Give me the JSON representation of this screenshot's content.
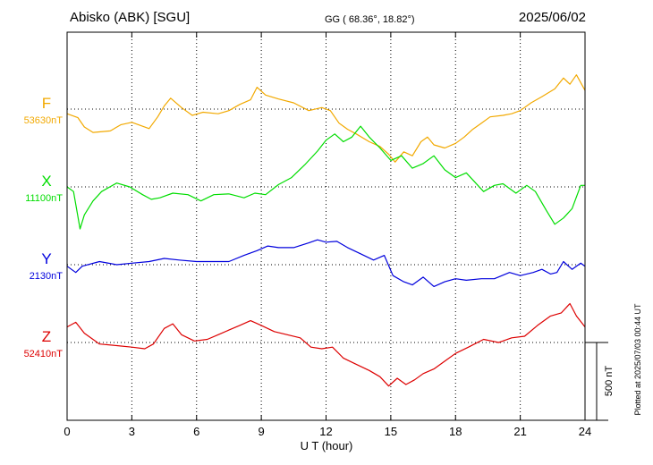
{
  "header": {
    "station": "Abisko (ABK)  [SGU]",
    "coords": "GG ( 68.36°,  18.82°)",
    "date": "2025/06/02"
  },
  "plotted_note": "Plotted at 2025/07/03 00:44 UT",
  "scale_bar_label": "500 nT",
  "chart_data": {
    "type": "line",
    "xlabel": "U T (hour)",
    "xlim": [
      0,
      24
    ],
    "xticks": [
      0,
      3,
      6,
      9,
      12,
      15,
      18,
      21,
      24
    ],
    "tick_labels": [
      "0",
      "3",
      "6",
      "9",
      "12",
      "15",
      "18",
      "21",
      "24"
    ],
    "grid": true,
    "scale_nT": 500,
    "series": [
      {
        "name": "F",
        "baseline_label": "53630nT",
        "baseline": 53630,
        "color": "#f2a900",
        "points": [
          [
            0,
            53600
          ],
          [
            0.5,
            53575
          ],
          [
            0.8,
            53515
          ],
          [
            1.2,
            53480
          ],
          [
            2,
            53490
          ],
          [
            2.5,
            53530
          ],
          [
            3,
            53545
          ],
          [
            3.8,
            53505
          ],
          [
            4.2,
            53580
          ],
          [
            4.5,
            53650
          ],
          [
            4.8,
            53700
          ],
          [
            5.3,
            53640
          ],
          [
            5.8,
            53590
          ],
          [
            6.3,
            53610
          ],
          [
            7,
            53600
          ],
          [
            7.5,
            53620
          ],
          [
            8,
            53660
          ],
          [
            8.5,
            53690
          ],
          [
            8.8,
            53770
          ],
          [
            9.2,
            53720
          ],
          [
            9.8,
            53695
          ],
          [
            10.5,
            53670
          ],
          [
            11.2,
            53620
          ],
          [
            11.8,
            53640
          ],
          [
            12.2,
            53620
          ],
          [
            12.6,
            53540
          ],
          [
            13,
            53500
          ],
          [
            13.4,
            53470
          ],
          [
            14,
            53420
          ],
          [
            14.5,
            53390
          ],
          [
            14.9,
            53340
          ],
          [
            15.2,
            53290
          ],
          [
            15.6,
            53355
          ],
          [
            16,
            53330
          ],
          [
            16.4,
            53420
          ],
          [
            16.7,
            53450
          ],
          [
            17,
            53400
          ],
          [
            17.5,
            53380
          ],
          [
            18,
            53410
          ],
          [
            18.4,
            53450
          ],
          [
            18.8,
            53500
          ],
          [
            19.2,
            53540
          ],
          [
            19.6,
            53580
          ],
          [
            20.2,
            53590
          ],
          [
            20.6,
            53600
          ],
          [
            21,
            53620
          ],
          [
            21.5,
            53670
          ],
          [
            22,
            53710
          ],
          [
            22.6,
            53760
          ],
          [
            23,
            53830
          ],
          [
            23.3,
            53790
          ],
          [
            23.6,
            53850
          ],
          [
            24,
            53750
          ]
        ]
      },
      {
        "name": "X",
        "baseline_label": "11100nT",
        "baseline": 11100,
        "color": "#00dd00",
        "points": [
          [
            0,
            11100
          ],
          [
            0.3,
            11070
          ],
          [
            0.6,
            10830
          ],
          [
            0.8,
            10920
          ],
          [
            1.2,
            11010
          ],
          [
            1.6,
            11070
          ],
          [
            2.3,
            11125
          ],
          [
            2.9,
            11100
          ],
          [
            3.5,
            11050
          ],
          [
            3.9,
            11020
          ],
          [
            4.3,
            11030
          ],
          [
            4.9,
            11060
          ],
          [
            5.6,
            11050
          ],
          [
            6.2,
            11010
          ],
          [
            6.8,
            11050
          ],
          [
            7.5,
            11055
          ],
          [
            8.2,
            11030
          ],
          [
            8.7,
            11060
          ],
          [
            9.2,
            11050
          ],
          [
            9.8,
            11115
          ],
          [
            10.4,
            11160
          ],
          [
            11,
            11240
          ],
          [
            11.6,
            11330
          ],
          [
            12,
            11400
          ],
          [
            12.4,
            11440
          ],
          [
            12.8,
            11390
          ],
          [
            13.2,
            11420
          ],
          [
            13.6,
            11490
          ],
          [
            14,
            11420
          ],
          [
            14.5,
            11350
          ],
          [
            15,
            11270
          ],
          [
            15.5,
            11300
          ],
          [
            16,
            11220
          ],
          [
            16.5,
            11250
          ],
          [
            17,
            11300
          ],
          [
            17.5,
            11210
          ],
          [
            18,
            11160
          ],
          [
            18.5,
            11190
          ],
          [
            18.9,
            11130
          ],
          [
            19.3,
            11070
          ],
          [
            19.8,
            11110
          ],
          [
            20.2,
            11120
          ],
          [
            20.8,
            11060
          ],
          [
            21.3,
            11110
          ],
          [
            21.7,
            11070
          ],
          [
            22.2,
            10950
          ],
          [
            22.6,
            10860
          ],
          [
            23,
            10900
          ],
          [
            23.4,
            10960
          ],
          [
            23.8,
            11110
          ],
          [
            24,
            11110
          ]
        ]
      },
      {
        "name": "Y",
        "baseline_label": "2130nT",
        "baseline": 2130,
        "color": "#0000dd",
        "points": [
          [
            0,
            2120
          ],
          [
            0.4,
            2080
          ],
          [
            0.7,
            2120
          ],
          [
            1.5,
            2150
          ],
          [
            2.3,
            2130
          ],
          [
            3,
            2140
          ],
          [
            3.8,
            2150
          ],
          [
            4.5,
            2170
          ],
          [
            5.2,
            2160
          ],
          [
            6,
            2150
          ],
          [
            6.8,
            2150
          ],
          [
            7.5,
            2150
          ],
          [
            8.2,
            2190
          ],
          [
            8.8,
            2220
          ],
          [
            9.3,
            2250
          ],
          [
            9.8,
            2240
          ],
          [
            10.5,
            2240
          ],
          [
            11.2,
            2270
          ],
          [
            11.6,
            2290
          ],
          [
            12,
            2275
          ],
          [
            12.5,
            2280
          ],
          [
            13,
            2240
          ],
          [
            13.6,
            2200
          ],
          [
            14.2,
            2160
          ],
          [
            14.7,
            2190
          ],
          [
            15.1,
            2060
          ],
          [
            15.6,
            2020
          ],
          [
            16,
            2000
          ],
          [
            16.5,
            2050
          ],
          [
            17,
            1990
          ],
          [
            17.5,
            2020
          ],
          [
            18,
            2040
          ],
          [
            18.5,
            2030
          ],
          [
            19.2,
            2040
          ],
          [
            19.8,
            2040
          ],
          [
            20.5,
            2080
          ],
          [
            21,
            2060
          ],
          [
            21.6,
            2080
          ],
          [
            22,
            2100
          ],
          [
            22.4,
            2070
          ],
          [
            22.7,
            2080
          ],
          [
            23,
            2150
          ],
          [
            23.4,
            2100
          ],
          [
            23.8,
            2140
          ],
          [
            24,
            2120
          ]
        ]
      },
      {
        "name": "Z",
        "baseline_label": "52410nT",
        "baseline": 52410,
        "color": "#dd0000",
        "points": [
          [
            0,
            52510
          ],
          [
            0.4,
            52540
          ],
          [
            0.8,
            52470
          ],
          [
            1.5,
            52400
          ],
          [
            2.3,
            52390
          ],
          [
            3,
            52380
          ],
          [
            3.6,
            52370
          ],
          [
            4,
            52400
          ],
          [
            4.5,
            52500
          ],
          [
            4.9,
            52530
          ],
          [
            5.3,
            52460
          ],
          [
            5.9,
            52420
          ],
          [
            6.5,
            52430
          ],
          [
            7,
            52460
          ],
          [
            7.5,
            52490
          ],
          [
            8,
            52520
          ],
          [
            8.5,
            52550
          ],
          [
            9,
            52520
          ],
          [
            9.6,
            52480
          ],
          [
            10.2,
            52460
          ],
          [
            10.8,
            52440
          ],
          [
            11.3,
            52380
          ],
          [
            11.8,
            52370
          ],
          [
            12.3,
            52380
          ],
          [
            12.8,
            52310
          ],
          [
            13.4,
            52270
          ],
          [
            14,
            52230
          ],
          [
            14.5,
            52190
          ],
          [
            14.9,
            52130
          ],
          [
            15.3,
            52180
          ],
          [
            15.7,
            52140
          ],
          [
            16.1,
            52170
          ],
          [
            16.5,
            52210
          ],
          [
            17,
            52240
          ],
          [
            17.5,
            52290
          ],
          [
            18,
            52340
          ],
          [
            18.6,
            52380
          ],
          [
            19.3,
            52430
          ],
          [
            20,
            52410
          ],
          [
            20.6,
            52440
          ],
          [
            21.2,
            52450
          ],
          [
            21.8,
            52520
          ],
          [
            22.4,
            52580
          ],
          [
            22.9,
            52600
          ],
          [
            23.3,
            52660
          ],
          [
            23.6,
            52580
          ],
          [
            24,
            52510
          ]
        ]
      }
    ]
  }
}
